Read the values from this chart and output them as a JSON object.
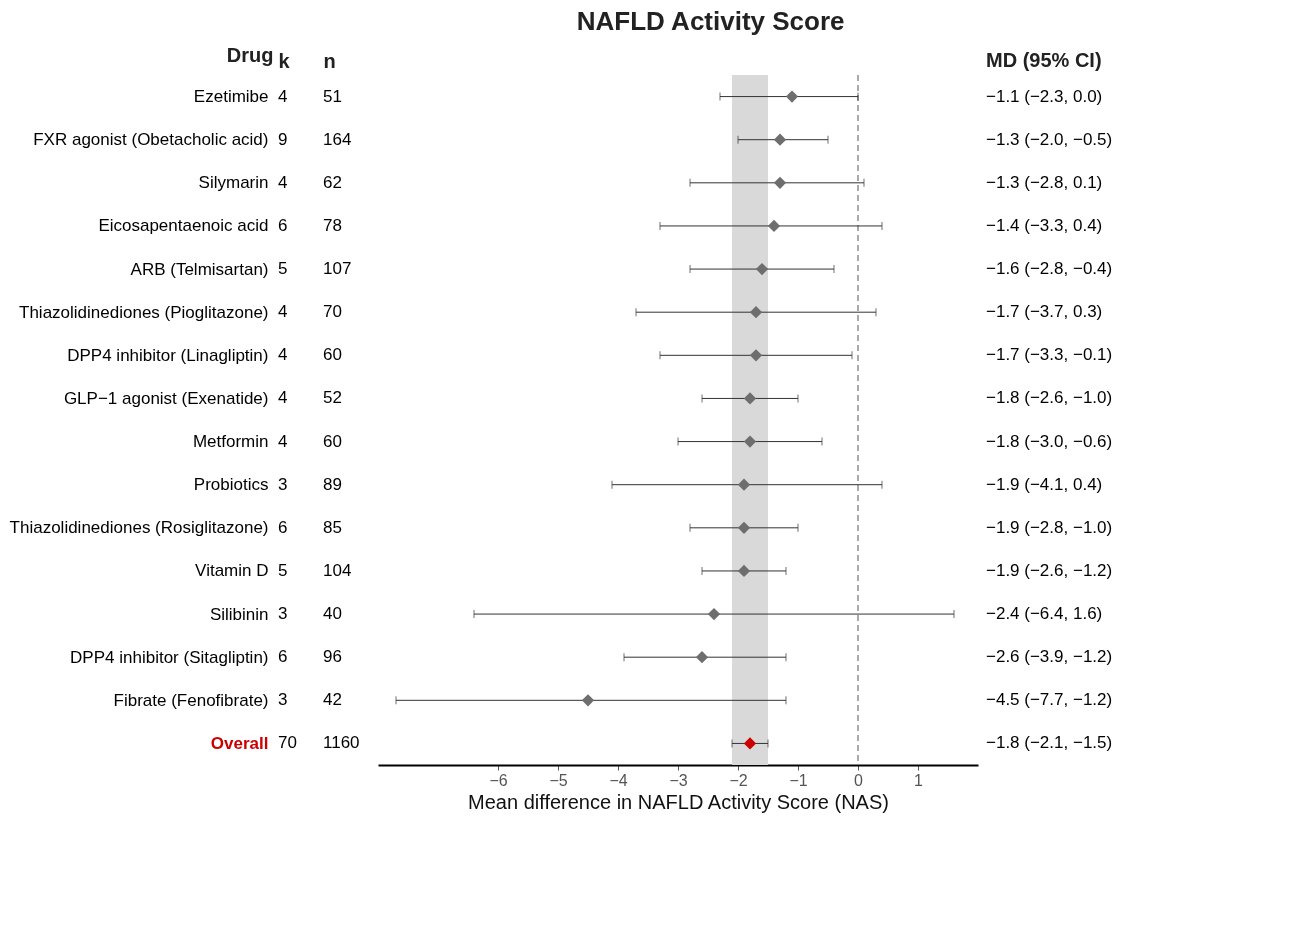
{
  "chart_data": {
    "type": "scatter",
    "orientation": "horizontal",
    "title": "NAFLD Activity Score",
    "xlabel": "Mean difference in NAFLD Activity Score (NAS)",
    "ylabel": "Drug",
    "categories": [
      "Ezetimibe",
      "FXR agonist (Obetacholic acid)",
      "Silymarin",
      "Eicosapentaenoic acid",
      "ARB (Telmisartan)",
      "Thiazolidinediones (Pioglitazone)",
      "DPP4 inhibitor (Linagliptin)",
      "GLP−1 agonist (Exenatide)",
      "Metformin",
      "Probiotics",
      "Thiazolidinediones (Rosiglitazone)",
      "Vitamin D",
      "Silibinin",
      "DPP4 inhibitor (Sitagliptin)",
      "Fibrate (Fenofibrate)",
      "Overall"
    ],
    "values": [
      -1.1,
      -1.3,
      -1.3,
      -1.4,
      -1.6,
      -1.7,
      -1.7,
      -1.8,
      -1.8,
      -1.9,
      -1.9,
      -1.9,
      -2.4,
      -2.6,
      -4.5,
      -1.8
    ],
    "errors": [
      [
        -2.3,
        0.0
      ],
      [
        -2.0,
        -0.5
      ],
      [
        -2.8,
        0.1
      ],
      [
        -3.3,
        0.4
      ],
      [
        -2.8,
        -0.4
      ],
      [
        -3.7,
        0.3
      ],
      [
        -3.3,
        -0.1
      ],
      [
        -2.6,
        -1.0
      ],
      [
        -3.0,
        -0.6
      ],
      [
        -4.1,
        0.4
      ],
      [
        -2.8,
        -1.0
      ],
      [
        -2.6,
        -1.2
      ],
      [
        -6.4,
        1.6
      ],
      [
        -3.9,
        -1.2
      ],
      [
        -7.7,
        -1.2
      ],
      [
        -2.1,
        -1.5
      ]
    ],
    "colors": [
      "#6e6e6e",
      "#6e6e6e",
      "#6e6e6e",
      "#6e6e6e",
      "#6e6e6e",
      "#6e6e6e",
      "#6e6e6e",
      "#6e6e6e",
      "#6e6e6e",
      "#6e6e6e",
      "#6e6e6e",
      "#6e6e6e",
      "#6e6e6e",
      "#6e6e6e",
      "#6e6e6e",
      "#cc0000"
    ],
    "marker": "diamond",
    "grid": false,
    "legend": false,
    "xlim": [
      -8,
      2
    ],
    "xticks": [
      {
        "value": -6,
        "label": "−6"
      },
      {
        "value": -5,
        "label": "−5"
      },
      {
        "value": -4,
        "label": "−4"
      },
      {
        "value": -3,
        "label": "−3"
      },
      {
        "value": -2,
        "label": "−2"
      },
      {
        "value": -1,
        "label": "−1"
      },
      0,
      1
    ],
    "bands": [
      {
        "axis": "x",
        "from": -2.1,
        "to": -1.5,
        "color": "#d9d9d9"
      }
    ],
    "ref_lines": [
      {
        "axis": "x",
        "value": 0,
        "color": "#aaaaaa",
        "line_style": "dashed"
      }
    ],
    "annotations": [
      "k",
      "n",
      "MD (95% CI)",
      "4",
      "51",
      "−1.1 (−2.3, 0.0)",
      "9",
      "164",
      "−1.3 (−2.0, −0.5)",
      "4",
      "62",
      "−1.3 (−2.8, 0.1)",
      "6",
      "78",
      "−1.4 (−3.3, 0.4)",
      "5",
      "107",
      "−1.6 (−2.8, −0.4)",
      "4",
      "70",
      "−1.7 (−3.7, 0.3)",
      "4",
      "60",
      "−1.7 (−3.3, −0.1)",
      "4",
      "52",
      "−1.8 (−2.6, −1.0)",
      "4",
      "60",
      "−1.8 (−3.0, −0.6)",
      "3",
      "89",
      "−1.9 (−4.1, 0.4)",
      "6",
      "85",
      "−1.9 (−2.8, −1.0)",
      "5",
      "104",
      "−1.9 (−2.6, −1.2)",
      "3",
      "40",
      "−2.4 (−6.4, 1.6)",
      "6",
      "96",
      "−2.6 (−3.9, −1.2)",
      "3",
      "42",
      "−4.5 (−7.7, −1.2)",
      "70",
      "1160",
      "−1.8 (−2.1, −1.5)"
    ]
  }
}
